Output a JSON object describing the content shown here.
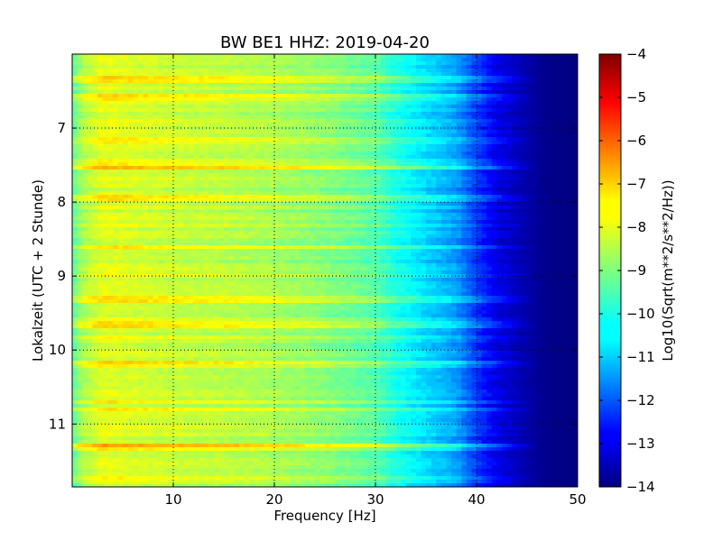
{
  "chart_data": {
    "type": "heatmap",
    "title": "BW BE1 HHZ: 2019-04-20",
    "xlabel": "Frequency [Hz]",
    "ylabel": "Lokalzeit (UTC + 2 Stunde)",
    "xlim": [
      0,
      50
    ],
    "ylim": [
      6.0,
      11.85
    ],
    "y_inverted": true,
    "x_ticks": [
      10,
      20,
      30,
      40,
      50
    ],
    "y_ticks": [
      7,
      8,
      9,
      10,
      11
    ],
    "grid": true,
    "colormap": "jet",
    "colorbar": {
      "label": "Log10(Sqrt(m**2/s**2/Hz))",
      "range": [
        -14,
        -4
      ],
      "ticks": [
        -4,
        -5,
        -6,
        -7,
        -8,
        -9,
        -10,
        -11,
        -12,
        -13,
        -14
      ]
    },
    "description_profile": {
      "frequency_hz": [
        0,
        1,
        3,
        5,
        10,
        15,
        20,
        25,
        30,
        32,
        35,
        38,
        40,
        42,
        45,
        47,
        50
      ],
      "log10_amplitude": [
        -9.4,
        -8.6,
        -8.0,
        -8.1,
        -8.3,
        -8.4,
        -8.6,
        -8.9,
        -9.4,
        -10.0,
        -10.6,
        -11.2,
        -12.2,
        -13.0,
        -13.6,
        -13.9,
        -14.0
      ]
    },
    "loud_times_hours": [
      6.35,
      6.6,
      7.5,
      7.95,
      8.6,
      9.3,
      9.65,
      10.2,
      10.8,
      11.3
    ]
  }
}
